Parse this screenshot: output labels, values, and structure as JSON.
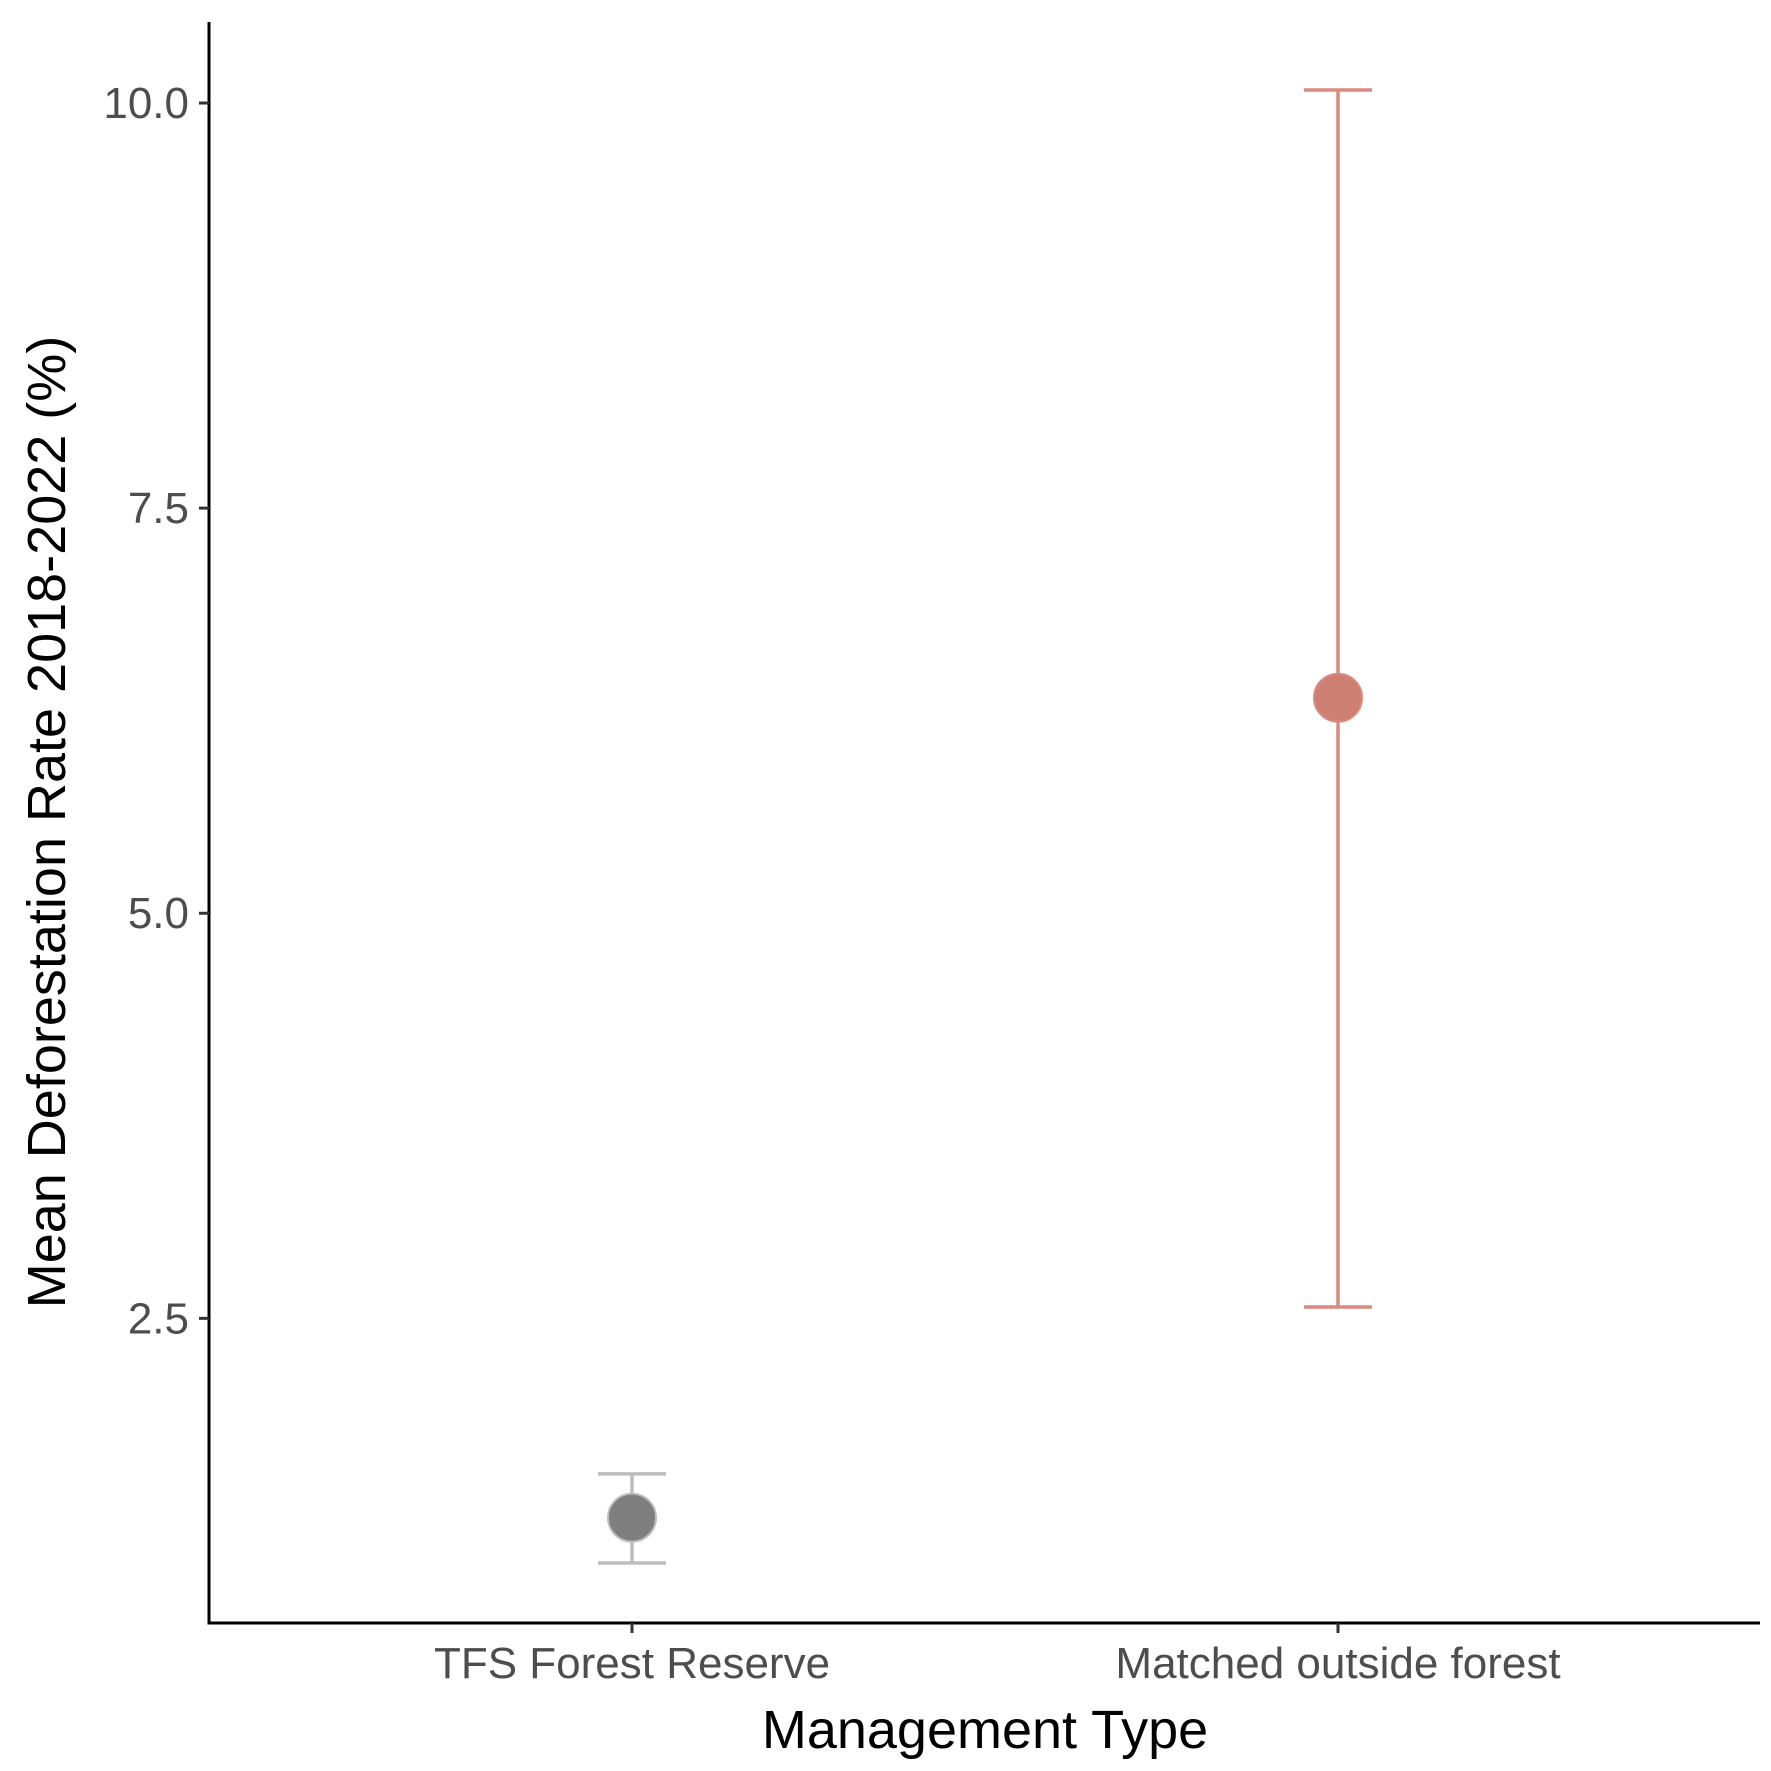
{
  "chart_data": {
    "type": "scatter",
    "title": "",
    "xlabel": "Management Type",
    "ylabel": "Mean Deforestation Rate 2018-2022 (%)",
    "categories": [
      "TFS Forest Reserve",
      "Matched outside forest"
    ],
    "ylim": [
      0.62,
      10.5
    ],
    "yticks": [
      2.5,
      5.0,
      7.5,
      10.0
    ],
    "ytick_labels": [
      "2.5",
      "5.0",
      "7.5",
      "10.0"
    ],
    "grid": false,
    "legend": "none",
    "points": [
      {
        "category": "TFS Forest Reserve",
        "y": 1.27,
        "ymin": 0.99,
        "ymax": 1.54,
        "color": "#7f7f7f",
        "errorbar_color": "#bdbdbd"
      },
      {
        "category": "Matched outside forest",
        "y": 6.33,
        "ymin": 2.57,
        "ymax": 10.08,
        "color": "#cd7f72",
        "errorbar_color": "#d98b80"
      }
    ]
  }
}
